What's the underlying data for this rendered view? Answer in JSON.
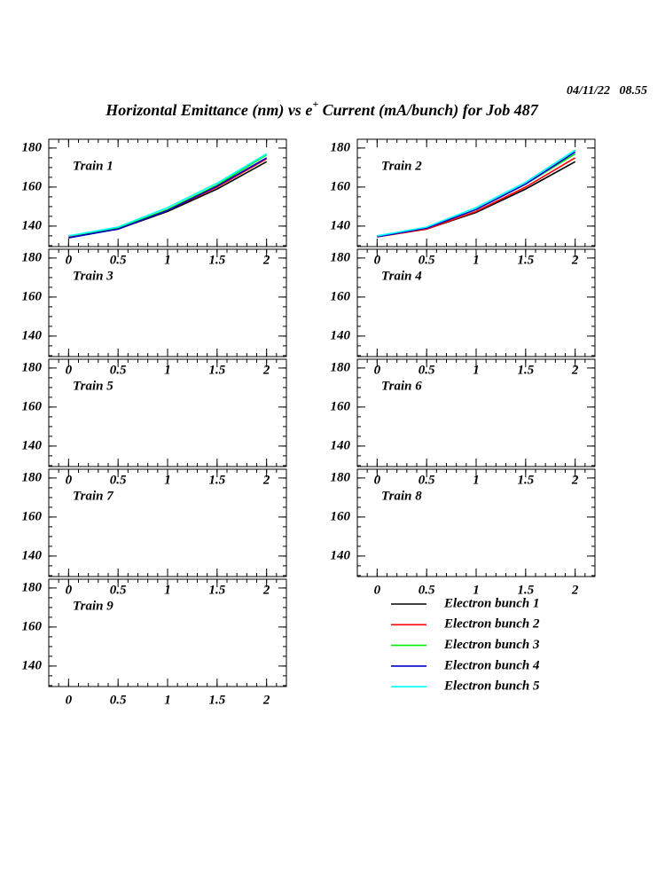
{
  "timestamp": "04/11/22   08.55",
  "title": [
    "Horizontal Emittance (nm) vs e",
    "+",
    " Current (mA/bunch) for Job 487"
  ],
  "chart_data": [
    {
      "type": "line",
      "title": "Train 1",
      "x": [
        0,
        0.5,
        1,
        1.5,
        2
      ],
      "xlim": [
        -0.2,
        2.2
      ],
      "ylim": [
        129.5,
        184.5
      ],
      "xticks": [
        0,
        0.5,
        1,
        1.5,
        2
      ],
      "yticks": [
        140,
        160,
        180
      ],
      "series": [
        {
          "name": "Electron bunch 1",
          "color": "#000000",
          "values": [
            134,
            138.5,
            147.5,
            159,
            173
          ]
        },
        {
          "name": "Electron bunch 2",
          "color": "#ff0000",
          "values": [
            134.5,
            138.5,
            148,
            160,
            174.5
          ]
        },
        {
          "name": "Electron bunch 3",
          "color": "#00ee00",
          "values": [
            135,
            139,
            148.5,
            161,
            176.5
          ]
        },
        {
          "name": "Electron bunch 4",
          "color": "#0000cc",
          "values": [
            134,
            138.5,
            148,
            160.5,
            175
          ]
        },
        {
          "name": "Electron bunch 5",
          "color": "#00ffff",
          "values": [
            135,
            139.5,
            149.5,
            162,
            177
          ]
        }
      ]
    },
    {
      "type": "line",
      "title": "Train 2",
      "x": [
        0,
        0.5,
        1,
        1.5,
        2
      ],
      "xlim": [
        -0.2,
        2.2
      ],
      "ylim": [
        129.5,
        184.5
      ],
      "xticks": [
        0,
        0.5,
        1,
        1.5,
        2
      ],
      "yticks": [
        140,
        160,
        180
      ],
      "series": [
        {
          "name": "Electron bunch 1",
          "color": "#000000",
          "values": [
            134.5,
            138.5,
            147,
            159,
            173
          ]
        },
        {
          "name": "Electron bunch 2",
          "color": "#ff0000",
          "values": [
            134.5,
            138.5,
            147.5,
            160,
            175
          ]
        },
        {
          "name": "Electron bunch 3",
          "color": "#00ee00",
          "values": [
            135,
            139,
            148.5,
            161.5,
            177
          ]
        },
        {
          "name": "Electron bunch 4",
          "color": "#0000cc",
          "values": [
            134.5,
            139,
            148.5,
            161.5,
            178
          ]
        },
        {
          "name": "Electron bunch 5",
          "color": "#00ffff",
          "values": [
            135,
            139.5,
            149.5,
            162.5,
            179
          ]
        }
      ]
    },
    {
      "type": "line",
      "title": "Train 3",
      "x": [],
      "xlim": [
        -0.2,
        2.2
      ],
      "ylim": [
        129.5,
        184.5
      ],
      "xticks": [
        0,
        0.5,
        1,
        1.5,
        2
      ],
      "yticks": [
        140,
        160,
        180
      ],
      "series": []
    },
    {
      "type": "line",
      "title": "Train 4",
      "x": [],
      "xlim": [
        -0.2,
        2.2
      ],
      "ylim": [
        129.5,
        184.5
      ],
      "xticks": [
        0,
        0.5,
        1,
        1.5,
        2
      ],
      "yticks": [
        140,
        160,
        180
      ],
      "series": []
    },
    {
      "type": "line",
      "title": "Train 5",
      "x": [],
      "xlim": [
        -0.2,
        2.2
      ],
      "ylim": [
        129.5,
        184.5
      ],
      "xticks": [
        0,
        0.5,
        1,
        1.5,
        2
      ],
      "yticks": [
        140,
        160,
        180
      ],
      "series": []
    },
    {
      "type": "line",
      "title": "Train 6",
      "x": [],
      "xlim": [
        -0.2,
        2.2
      ],
      "ylim": [
        129.5,
        184.5
      ],
      "xticks": [
        0,
        0.5,
        1,
        1.5,
        2
      ],
      "yticks": [
        140,
        160,
        180
      ],
      "series": []
    },
    {
      "type": "line",
      "title": "Train 7",
      "x": [],
      "xlim": [
        -0.2,
        2.2
      ],
      "ylim": [
        129.5,
        184.5
      ],
      "xticks": [
        0,
        0.5,
        1,
        1.5,
        2
      ],
      "yticks": [
        140,
        160,
        180
      ],
      "series": []
    },
    {
      "type": "line",
      "title": "Train 8",
      "x": [],
      "xlim": [
        -0.2,
        2.2
      ],
      "ylim": [
        129.5,
        184.5
      ],
      "xticks": [
        0,
        0.5,
        1,
        1.5,
        2
      ],
      "yticks": [
        140,
        160,
        180
      ],
      "series": []
    },
    {
      "type": "line",
      "title": "Train 9",
      "x": [],
      "xlim": [
        -0.2,
        2.2
      ],
      "ylim": [
        129.5,
        184.5
      ],
      "xticks": [
        0,
        0.5,
        1,
        1.5,
        2
      ],
      "yticks": [
        140,
        160,
        180
      ],
      "series": []
    }
  ]
}
